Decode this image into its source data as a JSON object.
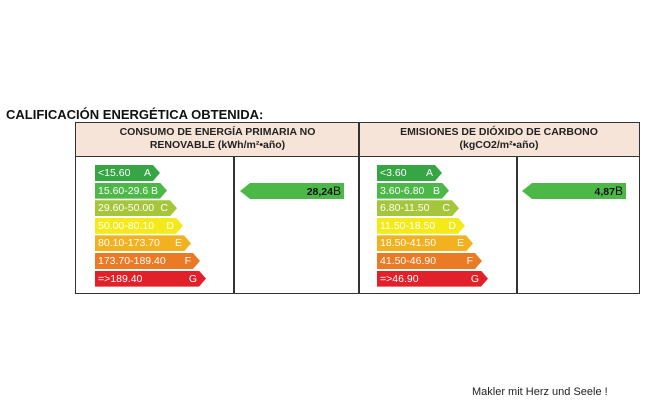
{
  "title": "CALIFICACIÓN ENERGÉTICA OBTENIDA:",
  "colors": {
    "A": "#36a543",
    "B": "#4cb848",
    "C": "#a5c63b",
    "D": "#f4ea1a",
    "E": "#f2b11e",
    "F": "#eb7a25",
    "G": "#e2202a",
    "header_bg": "#f6e4d8"
  },
  "panels": [
    {
      "header_line1": "CONSUMO  DE ENERGÍA PRIMARIA NO",
      "header_line2": "RENOVABLE (kWh/m²•año)",
      "scale": [
        {
          "range": "<15.60",
          "letter": "A"
        },
        {
          "range": "15.60-29.6",
          "letter": "B"
        },
        {
          "range": "29.60-50.00",
          "letter": "C"
        },
        {
          "range": "50.00-80.10",
          "letter": "D"
        },
        {
          "range": "80.10-173.70",
          "letter": "E"
        },
        {
          "range": "173.70-189.40",
          "letter": "F"
        },
        {
          "range": "=>189.40",
          "letter": "G"
        }
      ],
      "value": "28,24",
      "value_letter": "B"
    },
    {
      "header_line1": "EMISIONES DE DIÓXIDO DE CARBONO",
      "header_line2": "(kgCO2/m²•año)",
      "scale": [
        {
          "range": "<3.60",
          "letter": "A"
        },
        {
          "range": "3.60-6.80",
          "letter": "B"
        },
        {
          "range": "6.80-11.50",
          "letter": "C"
        },
        {
          "range": "11.50-18.50",
          "letter": "D"
        },
        {
          "range": "18.50-41.50",
          "letter": "E"
        },
        {
          "range": "41.50-46.90",
          "letter": "F"
        },
        {
          "range": "=>46.90",
          "letter": "G"
        }
      ],
      "value": "4,87",
      "value_letter": "B"
    }
  ],
  "footer": "Makler mit Herz und Seele !"
}
